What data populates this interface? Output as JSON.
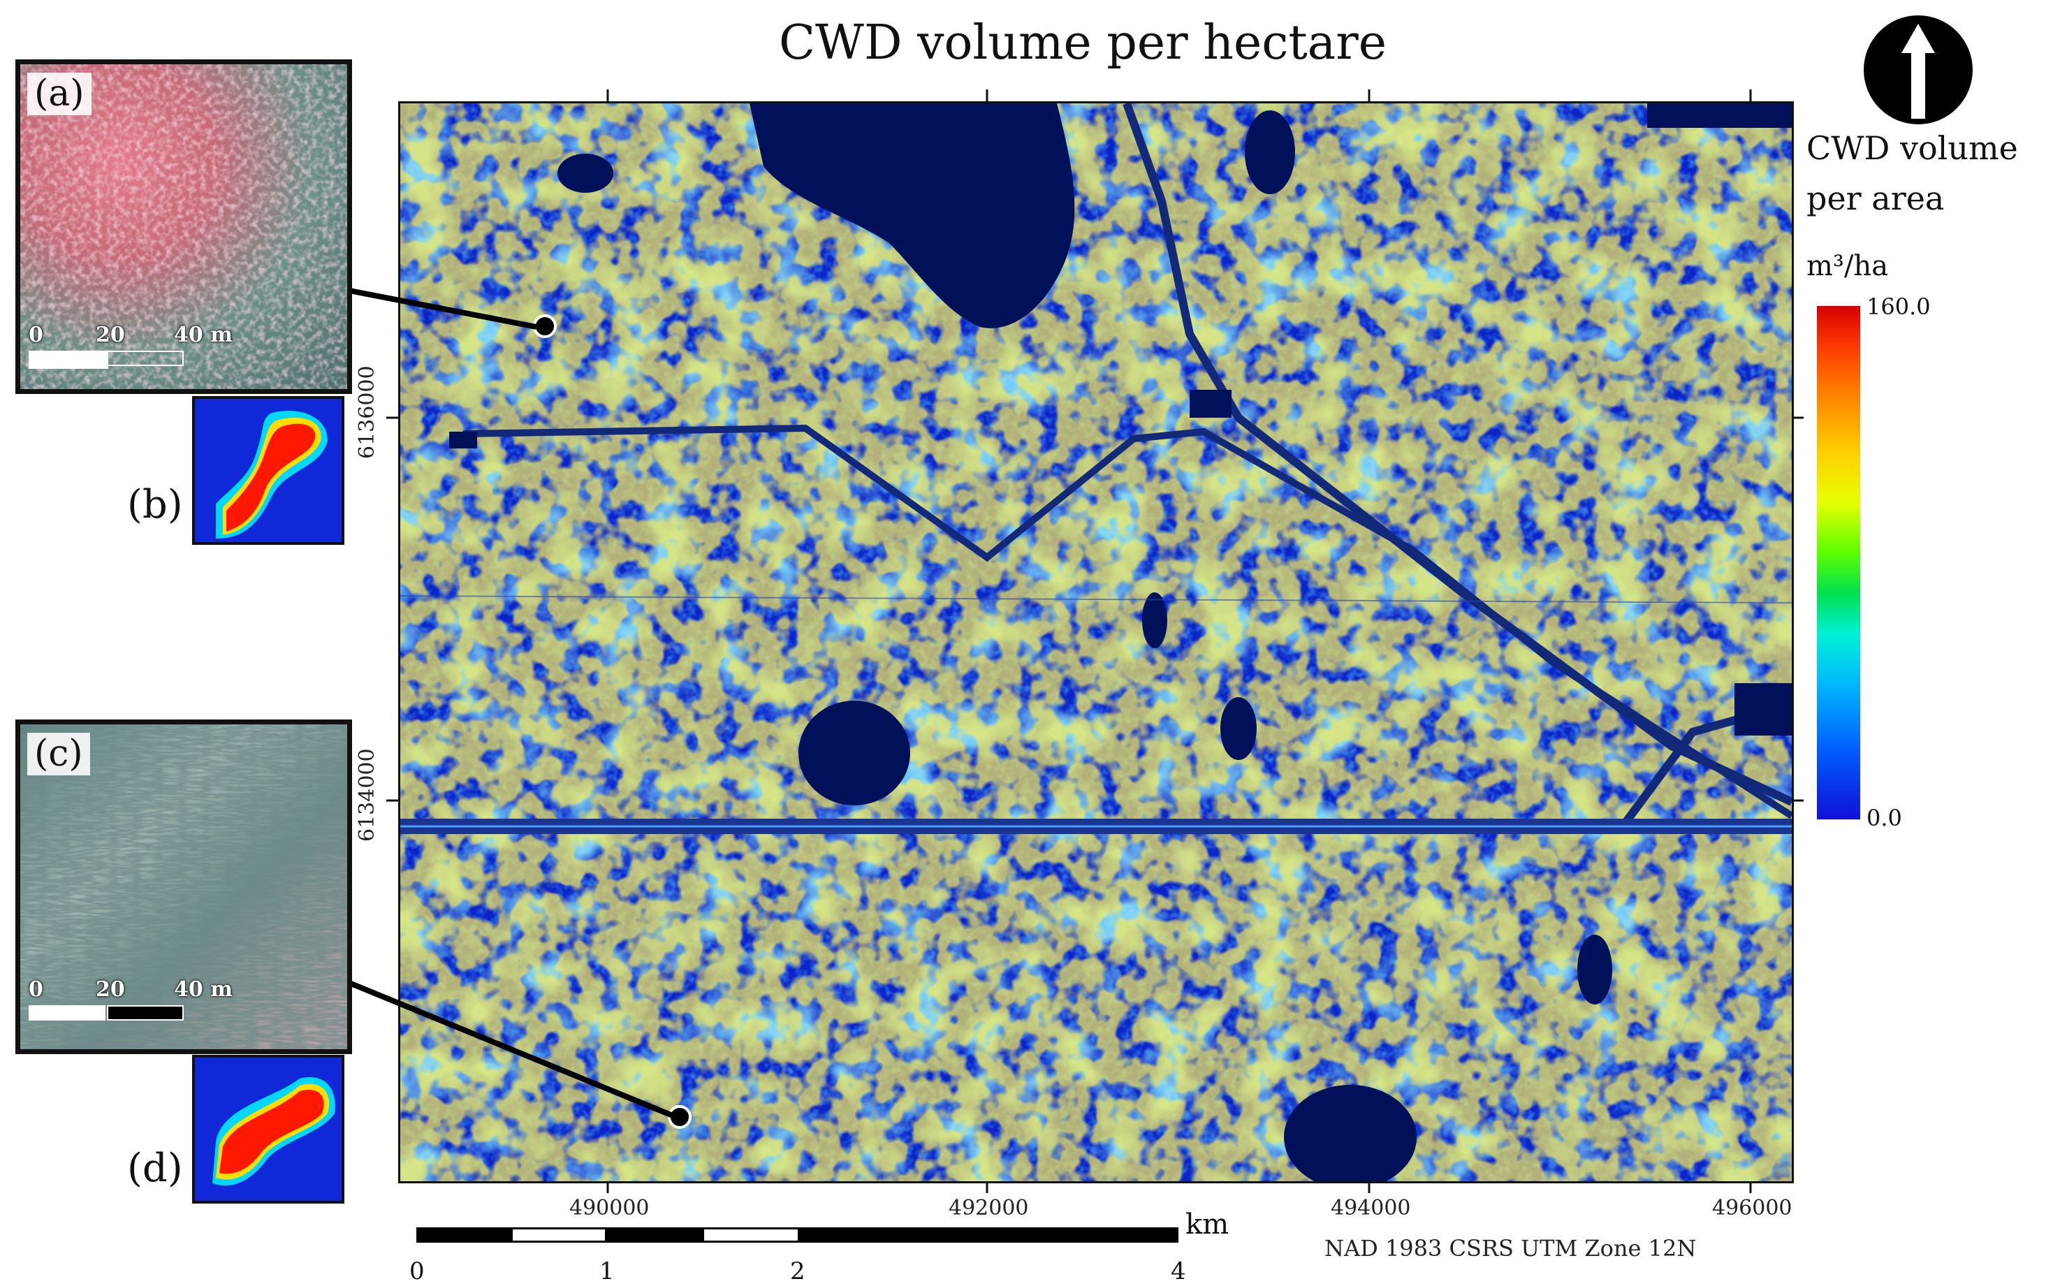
{
  "title": "CWD volume per hectare",
  "map": {
    "x_ticks": [
      "490000",
      "492000",
      "494000",
      "496000"
    ],
    "y_ticks": [
      "6136000",
      "6134000"
    ],
    "base_color": "#0a24c8",
    "water_color": "#00115a",
    "road_color": "#12297a"
  },
  "insets": [
    {
      "label": "(a)",
      "scale_text": [
        "0",
        "20",
        "40 m"
      ],
      "tone": "pink"
    },
    {
      "label": "(b)",
      "tone": "cwd-small"
    },
    {
      "label": "(c)",
      "scale_text": [
        "0",
        "20",
        "40 m"
      ],
      "tone": "teal"
    },
    {
      "label": "(d)",
      "tone": "cwd-small"
    }
  ],
  "legend": {
    "title_line1": "CWD volume",
    "title_line2": "per area",
    "unit": "m³/ha",
    "max": "160.0",
    "min": "0.0"
  },
  "north_arrow": {
    "icon": "north-arrow-icon"
  },
  "scalebar": {
    "labels": [
      "0",
      "1",
      "2",
      "4"
    ],
    "unit": "km"
  },
  "crs": "NAD 1983 CSRS UTM Zone 12N"
}
